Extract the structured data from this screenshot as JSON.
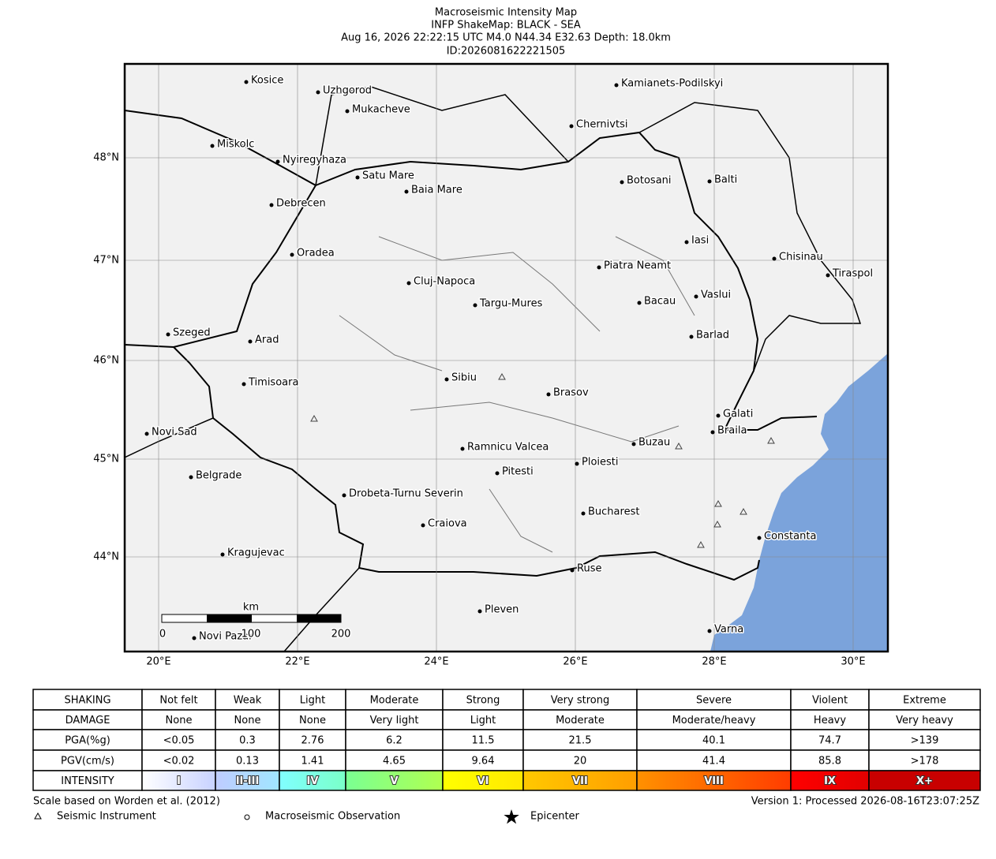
{
  "header": {
    "title": "Macroseismic Intensity Map",
    "subtitle": "INFP ShakeMap: BLACK - SEA",
    "event": "Aug 16, 2026 22:22:15 UTC M4.0 N44.34 E32.63 Depth: 18.0km",
    "id": "ID:2026081622221505"
  },
  "map": {
    "lat_labels": [
      "48°N",
      "47°N",
      "46°N",
      "45°N",
      "44°N"
    ],
    "lon_labels": [
      "20°E",
      "22°E",
      "24°E",
      "26°E",
      "28°E",
      "30°E"
    ],
    "cities": [
      "Kosice",
      "Uzhgorod",
      "Mukacheve",
      "Kamianets-Podilskyi",
      "Chernivtsi",
      "Miskolc",
      "Nyiregyhaza",
      "Satu Mare",
      "Baia Mare",
      "Botosani",
      "Balti",
      "Debrecen",
      "Iasi",
      "Oradea",
      "Chisinau",
      "Piatra Neamt",
      "Tiraspol",
      "Cluj-Napoca",
      "Targu-Mures",
      "Bacau",
      "Vaslui",
      "Szeged",
      "Arad",
      "Barlad",
      "Sibiu",
      "Timisoara",
      "Brasov",
      "Galati",
      "Novi Sad",
      "Braila",
      "Buzau",
      "Ramnicu Valcea",
      "Ploiesti",
      "Pitesti",
      "Belgrade",
      "Drobeta-Turnu Severin",
      "Bucharest",
      "Craiova",
      "Constanta",
      "Kragujevac",
      "Ruse",
      "Pleven",
      "Varna",
      "Novi Pazar"
    ],
    "scale_bar": {
      "unit": "km",
      "labels": [
        "0",
        "100",
        "200"
      ]
    }
  },
  "table": {
    "rows": [
      [
        "SHAKING",
        "Not felt",
        "Weak",
        "Light",
        "Moderate",
        "Strong",
        "Very strong",
        "Severe",
        "Violent",
        "Extreme"
      ],
      [
        "DAMAGE",
        "None",
        "None",
        "None",
        "Very light",
        "Light",
        "Moderate",
        "Moderate/heavy",
        "Heavy",
        "Very heavy"
      ],
      [
        "PGA(%g)",
        "<0.05",
        "0.3",
        "2.76",
        "6.2",
        "11.5",
        "21.5",
        "40.1",
        "74.7",
        ">139"
      ],
      [
        "PGV(cm/s)",
        "<0.02",
        "0.13",
        "1.41",
        "4.65",
        "9.64",
        "20",
        "41.4",
        "85.8",
        ">178"
      ],
      [
        "INTENSITY",
        "I",
        "II-III",
        "IV",
        "V",
        "VI",
        "VII",
        "VIII",
        "IX",
        "X+"
      ]
    ]
  },
  "footer": {
    "scale_note": "Scale based on Worden et al. (2012)",
    "version": "Version 1: Processed 2026-08-16T23:07:25Z"
  },
  "legend": [
    "Seismic Instrument",
    "Macroseismic Observation",
    "Epicenter"
  ]
}
